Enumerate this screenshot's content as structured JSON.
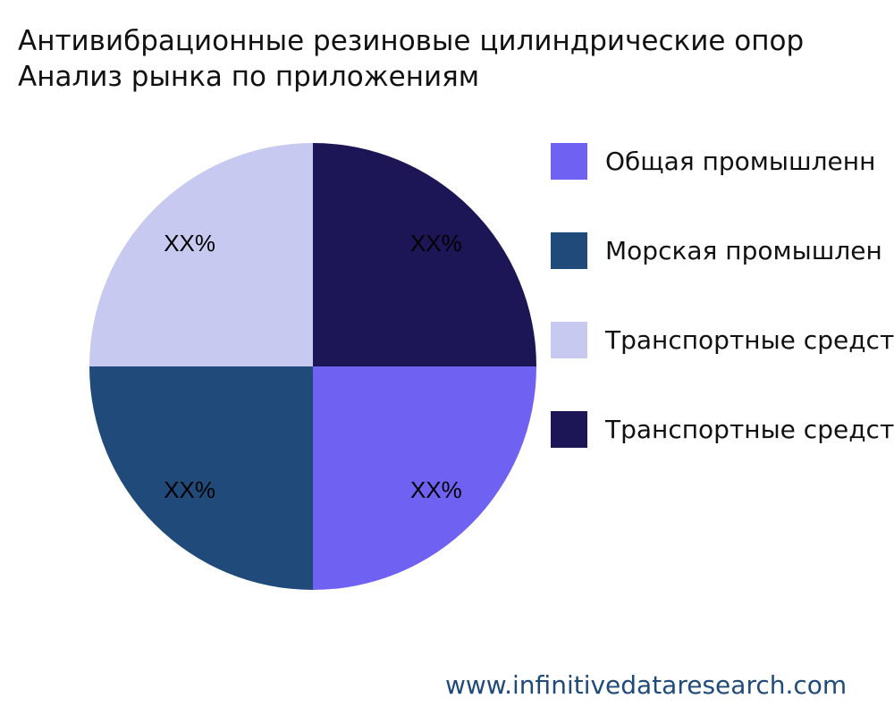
{
  "chart_data": {
    "type": "pie",
    "title_lines": [
      "Антивибрационные резиновые цилиндрические опор",
      "Анализ рынка по приложениям"
    ],
    "slices": [
      {
        "label": "Общая промышленн",
        "value": 25,
        "display": "XX%",
        "color": "#6f61f2"
      },
      {
        "label": "Морская промышлен",
        "value": 25,
        "display": "XX%",
        "color": "#1f4a7a"
      },
      {
        "label": "Транспортные средст",
        "value": 25,
        "display": "XX%",
        "color": "#c8c9f0"
      },
      {
        "label": "Транспортные средст",
        "value": 25,
        "display": "XX%",
        "color": "#1c1656"
      }
    ],
    "legend_position": "right"
  },
  "footer": {
    "watermark": "www.infinitivedataresearch.com"
  }
}
